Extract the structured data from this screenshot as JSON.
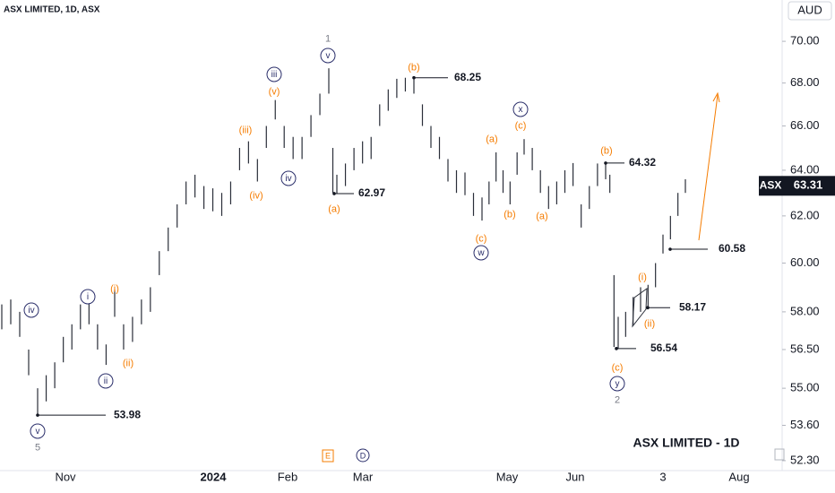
{
  "chart_data": {
    "type": "ohlc",
    "title": "ASX LIMITED, 1D, ASX",
    "currency": "AUD",
    "symbol": "ASX",
    "last_price": 63.31,
    "watermark": "ASX LIMITED - 1D",
    "log_scale": true,
    "color": "#2a2e39",
    "ylim": [
      51.94,
      72.04
    ],
    "yticks": [
      {
        "value": 70,
        "label": "70.00"
      },
      {
        "value": 68,
        "label": "68.00"
      },
      {
        "value": 66,
        "label": "66.00"
      },
      {
        "value": 64,
        "label": "64.00"
      },
      {
        "value": 62,
        "label": "62.00"
      },
      {
        "value": 60,
        "label": "60.00"
      },
      {
        "value": 58,
        "label": "58.00"
      },
      {
        "value": 56.5,
        "label": "56.50"
      },
      {
        "value": 55,
        "label": "55.00"
      },
      {
        "value": 53.6,
        "label": "53.60"
      },
      {
        "value": 52.3,
        "label": "52.30"
      }
    ],
    "x_axis_labels": [
      "Nov",
      "2024",
      "Feb",
      "Mar",
      "May",
      "Jun",
      "3",
      "Aug"
    ],
    "high": [
      58.3,
      58.5,
      58,
      56.5,
      55,
      55.5,
      56,
      57,
      57.5,
      58.3,
      58.5,
      57.5,
      56.7,
      58.9,
      57.5,
      57.8,
      58.5,
      59,
      60.5,
      61.5,
      62.5,
      63.5,
      63.8,
      63.3,
      63.2,
      63,
      63.5,
      65,
      65.3,
      64.5,
      66,
      67.2,
      66,
      65.5,
      65.5,
      66.5,
      67.5,
      68.7,
      65,
      63.8,
      64.3,
      65,
      65.3,
      65.5,
      67,
      67.7,
      68.2,
      68.25,
      68.25,
      67,
      66,
      65.5,
      64.5,
      64,
      63.9,
      63,
      62.8,
      63.5,
      64.8,
      64,
      63.5,
      64.8,
      65.4,
      65,
      64,
      63.3,
      63.5,
      64,
      64.32,
      62.5,
      63.3,
      64.3,
      64.32,
      63.8,
      59.5,
      57.8,
      58,
      58.6,
      59,
      59.1,
      60,
      61.2,
      62,
      63,
      63.6
    ],
    "low": [
      57.3,
      57.5,
      57,
      55.5,
      53.98,
      54.5,
      55,
      56,
      56.5,
      57.3,
      57.5,
      56.5,
      55.9,
      57.8,
      56.5,
      56.8,
      57.5,
      58,
      59.5,
      60.5,
      61.5,
      62.5,
      62.8,
      62.3,
      62.2,
      62,
      62.5,
      64,
      64.3,
      63.5,
      65,
      66.3,
      65,
      64.5,
      64.5,
      65.5,
      66.5,
      67.5,
      63,
      62.97,
      63.3,
      64,
      64.3,
      64.5,
      66,
      66.7,
      67.3,
      67.6,
      67.5,
      66,
      65,
      64.5,
      63.5,
      63,
      62.9,
      62,
      61.8,
      62.5,
      63.5,
      63,
      62.5,
      63.8,
      64.7,
      64,
      63,
      62.3,
      62.5,
      63,
      63.3,
      61.5,
      62.3,
      63.3,
      63.6,
      63,
      56.6,
      56.54,
      57,
      57.5,
      58,
      58.1,
      59,
      60.4,
      61,
      62,
      63
    ],
    "price_levels": [
      53.98,
      62.97,
      68.25,
      64.32,
      60.58,
      58.17,
      56.54
    ],
    "annotations": [
      {
        "text": "1",
        "color": "#787b86",
        "circled": false
      },
      {
        "text": "v",
        "color": "#2a2e6a",
        "circled": true
      },
      {
        "text": "(b)",
        "color": "#f57c00",
        "circled": false
      },
      {
        "text": "iii",
        "color": "#2a2e6a",
        "circled": true
      },
      {
        "text": "(v)",
        "color": "#f57c00",
        "circled": false
      },
      {
        "text": "(iii)",
        "color": "#f57c00",
        "circled": false
      },
      {
        "text": "(iv)",
        "color": "#f57c00",
        "circled": false
      },
      {
        "text": "iv",
        "color": "#2a2e6a",
        "circled": true
      },
      {
        "text": "(a)",
        "color": "#f57c00",
        "circled": false
      },
      {
        "text": "x",
        "color": "#2a2e6a",
        "circled": true
      },
      {
        "text": "(c)",
        "color": "#f57c00",
        "circled": false
      },
      {
        "text": "(a)",
        "color": "#f57c00",
        "circled": false
      },
      {
        "text": "(b)",
        "color": "#f57c00",
        "circled": false
      },
      {
        "text": "(b)",
        "color": "#f57c00",
        "circled": false
      },
      {
        "text": "(a)",
        "color": "#f57c00",
        "circled": false
      },
      {
        "text": "(c)",
        "color": "#f57c00",
        "circled": false
      },
      {
        "text": "w",
        "color": "#2a2e6a",
        "circled": true
      },
      {
        "text": "iv",
        "color": "#2a2e6a",
        "circled": true
      },
      {
        "text": "i",
        "color": "#2a2e6a",
        "circled": true
      },
      {
        "text": "(i)",
        "color": "#f57c00",
        "circled": false
      },
      {
        "text": "(ii)",
        "color": "#f57c00",
        "circled": false
      },
      {
        "text": "ii",
        "color": "#2a2e6a",
        "circled": true
      },
      {
        "text": "v",
        "color": "#2a2e6a",
        "circled": true
      },
      {
        "text": "5",
        "color": "#787b86",
        "circled": false
      },
      {
        "text": "(i)",
        "color": "#f57c00",
        "circled": false
      },
      {
        "text": "(ii)",
        "color": "#f57c00",
        "circled": false
      },
      {
        "text": "(c)",
        "color": "#f57c00",
        "circled": false
      },
      {
        "text": "y",
        "color": "#2a2e6a",
        "circled": true
      },
      {
        "text": "2",
        "color": "#787b86",
        "circled": false
      }
    ],
    "events": [
      "E",
      "D"
    ]
  }
}
